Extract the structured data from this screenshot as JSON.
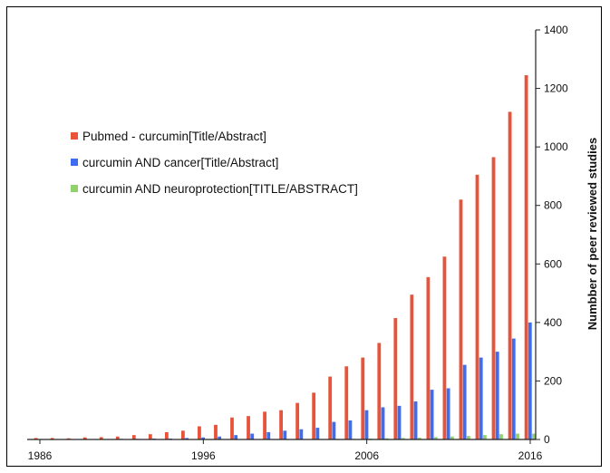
{
  "chart_data": {
    "type": "bar",
    "ylabel": "Numbber of peer reviewed studies",
    "ylim": [
      0,
      1400
    ],
    "yticks": [
      0,
      200,
      400,
      600,
      800,
      1000,
      1200,
      1400
    ],
    "xticks": [
      1986,
      1996,
      2006,
      2016
    ],
    "x": [
      1986,
      1987,
      1988,
      1989,
      1990,
      1991,
      1992,
      1993,
      1994,
      1995,
      1996,
      1997,
      1998,
      1999,
      2000,
      2001,
      2002,
      2003,
      2004,
      2005,
      2006,
      2007,
      2008,
      2009,
      2010,
      2011,
      2012,
      2013,
      2014,
      2015,
      2016
    ],
    "legend_position": "upper-left",
    "series": [
      {
        "name": "Pubmed - curcumin[Title/Abstract]",
        "color": "#e8533a",
        "values": [
          5,
          5,
          4,
          7,
          8,
          10,
          15,
          18,
          25,
          30,
          45,
          50,
          75,
          80,
          95,
          100,
          125,
          160,
          215,
          250,
          280,
          330,
          415,
          495,
          555,
          625,
          820,
          905,
          965,
          1120,
          1245
        ]
      },
      {
        "name": "curcumin AND cancer[Title/Abstract]",
        "color": "#3f6df2",
        "values": [
          0,
          0,
          0,
          1,
          1,
          2,
          2,
          3,
          3,
          5,
          7,
          10,
          15,
          20,
          25,
          30,
          35,
          40,
          60,
          65,
          100,
          110,
          115,
          130,
          170,
          175,
          255,
          280,
          300,
          345,
          400
        ]
      },
      {
        "name": "curcumin AND neuroprotection[TITLE/ABSTRACT]",
        "color": "#8fd16a",
        "values": [
          0,
          0,
          0,
          0,
          0,
          0,
          0,
          0,
          0,
          0,
          0,
          0,
          0,
          0,
          0,
          1,
          1,
          1,
          2,
          2,
          3,
          4,
          5,
          6,
          8,
          10,
          12,
          15,
          18,
          20,
          20
        ]
      }
    ]
  }
}
